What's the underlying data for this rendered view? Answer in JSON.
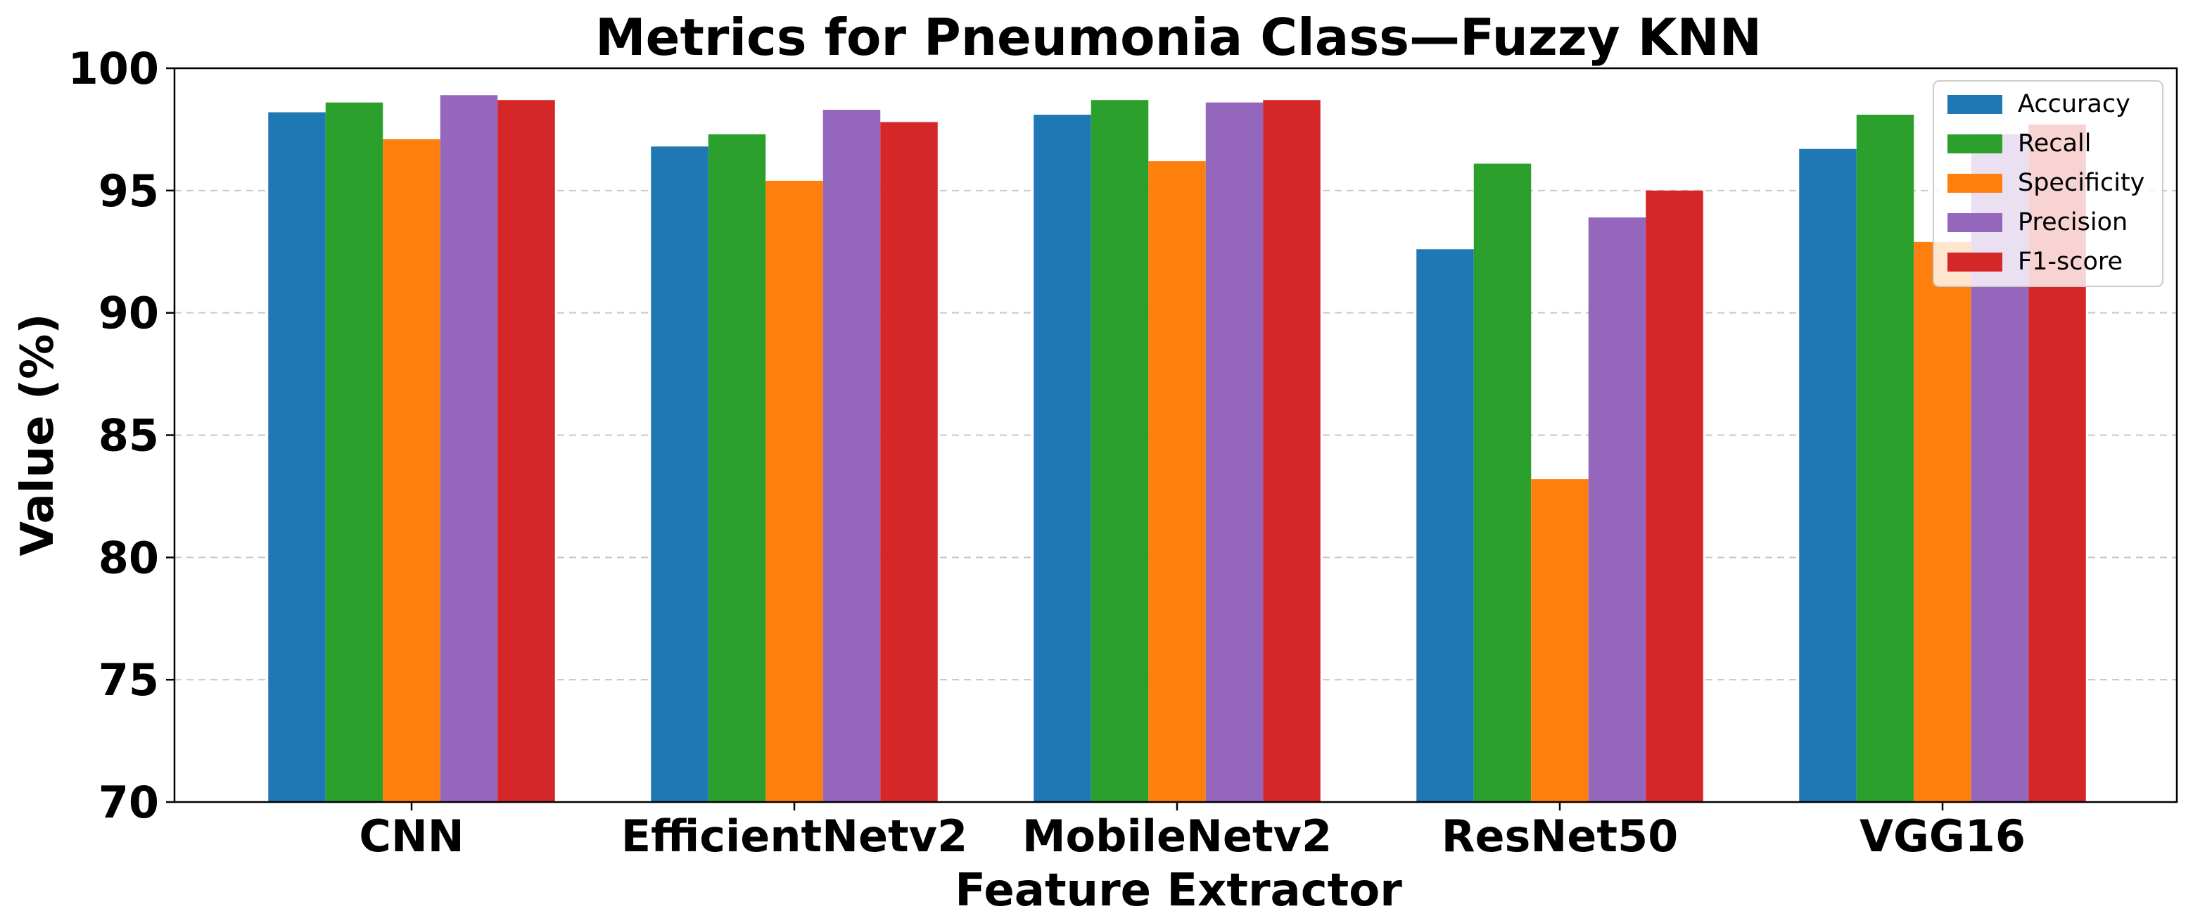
{
  "chart_data": {
    "type": "bar",
    "title": "Metrics for Pneumonia Class—Fuzzy KNN",
    "xlabel": "Feature Extractor",
    "ylabel": "Value (%)",
    "ylim": [
      70,
      100
    ],
    "yticks": [
      70,
      75,
      80,
      85,
      90,
      95,
      100
    ],
    "grid": "y-dashed",
    "legend_position": "top-right",
    "categories": [
      "CNN",
      "EfficientNetv2",
      "MobileNetv2",
      "ResNet50",
      "VGG16"
    ],
    "series": [
      {
        "name": "Accuracy",
        "color": "#1f77b4",
        "values": [
          98.2,
          96.8,
          98.1,
          92.6,
          96.7
        ]
      },
      {
        "name": "Recall",
        "color": "#2ca02c",
        "values": [
          98.6,
          97.3,
          98.7,
          96.1,
          98.1
        ]
      },
      {
        "name": "Specificity",
        "color": "#ff7f0e",
        "values": [
          97.1,
          95.4,
          96.2,
          83.2,
          92.9
        ]
      },
      {
        "name": "Precision",
        "color": "#9467bd",
        "values": [
          98.9,
          98.3,
          98.6,
          93.9,
          97.3
        ]
      },
      {
        "name": "F1-score",
        "color": "#d62728",
        "values": [
          98.7,
          97.8,
          98.7,
          95.0,
          97.7
        ]
      }
    ]
  }
}
